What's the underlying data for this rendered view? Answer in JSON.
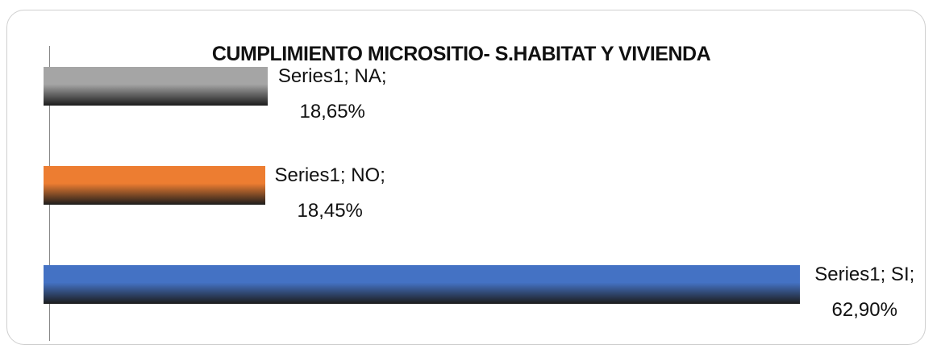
{
  "chart_data": {
    "type": "bar",
    "orientation": "horizontal",
    "title": "CUMPLIMIENTO MICROSITIO- S.HABITAT Y VIVIENDA",
    "values": [
      62.9,
      18.45,
      18.65
    ],
    "value_labels": [
      "Series1; SI; 62,90%",
      "Series1; NO; 18,45%",
      "Series1; NA; 18,65%"
    ],
    "colors": [
      "#4472c4",
      "#ed7d31",
      "#a5a5a5"
    ],
    "xlim": [
      0,
      72
    ]
  }
}
